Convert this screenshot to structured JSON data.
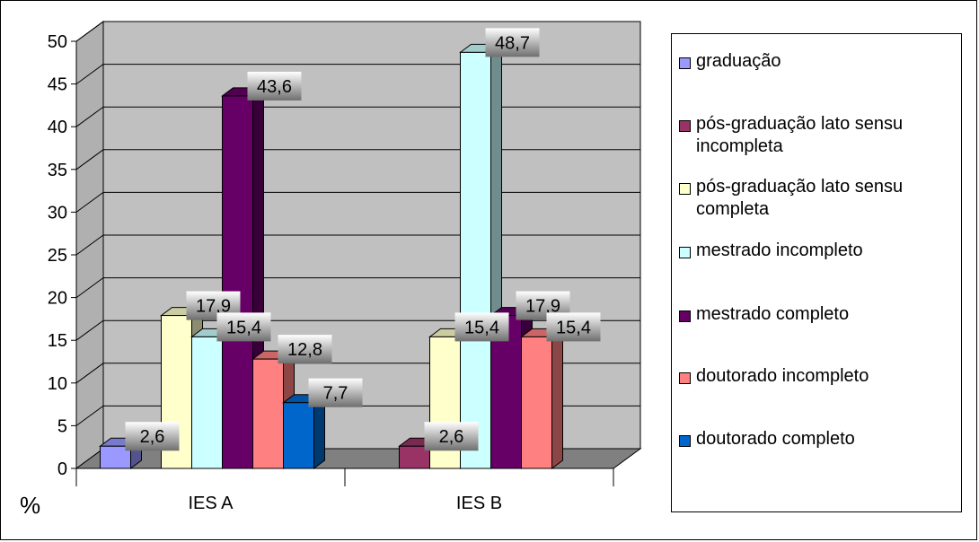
{
  "chart_data": {
    "type": "bar",
    "categories": [
      "IES A",
      "IES B"
    ],
    "y_unit_label": "%",
    "ylim": [
      0,
      50
    ],
    "y_ticks": [
      0,
      5,
      10,
      15,
      20,
      25,
      30,
      35,
      40,
      45,
      50
    ],
    "grid": true,
    "legend_position": "right",
    "series": [
      {
        "name": "graduação",
        "color": "#9999ff",
        "values": [
          2.6,
          0
        ],
        "labels": [
          "2,6",
          ""
        ]
      },
      {
        "name": "pós-graduação lato sensu incompleta",
        "color": "#993366",
        "values": [
          0,
          2.6
        ],
        "labels": [
          "",
          "2,6"
        ]
      },
      {
        "name": "pós-graduação lato sensu completa",
        "color": "#ffffcc",
        "values": [
          17.9,
          15.4
        ],
        "labels": [
          "17,9",
          "15,4"
        ]
      },
      {
        "name": "mestrado incompleto",
        "color": "#ccffff",
        "values": [
          15.4,
          48.7
        ],
        "labels": [
          "15,4",
          "48,7"
        ]
      },
      {
        "name": "mestrado completo",
        "color": "#660066",
        "values": [
          43.6,
          17.9
        ],
        "labels": [
          "43,6",
          "17,9"
        ]
      },
      {
        "name": "doutorado incompleto",
        "color": "#ff8080",
        "values": [
          12.8,
          15.4
        ],
        "labels": [
          "12,8",
          "15,4"
        ]
      },
      {
        "name": "doutorado completo",
        "color": "#0066cc",
        "values": [
          7.7,
          0
        ],
        "labels": [
          "7,7",
          ""
        ]
      }
    ]
  }
}
